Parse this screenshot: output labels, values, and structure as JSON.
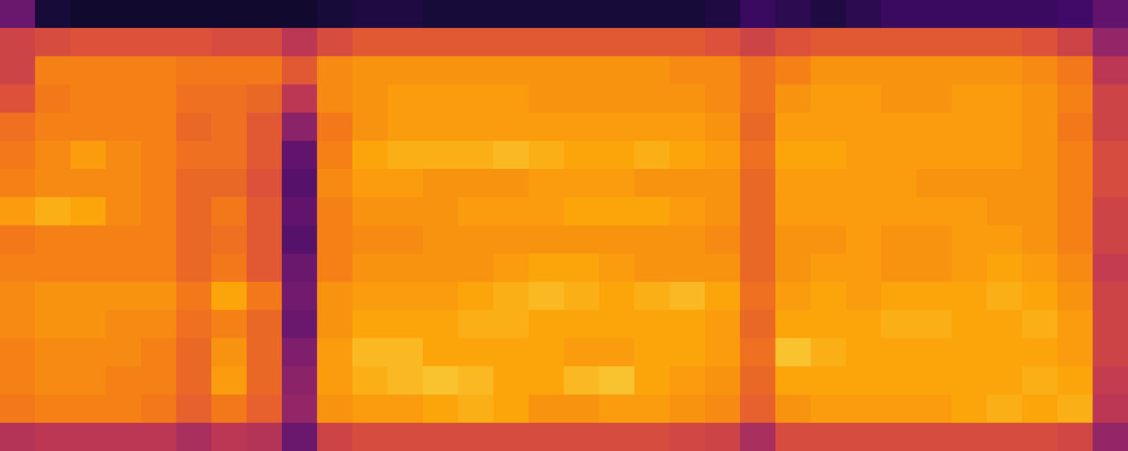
{
  "chart_data": {
    "type": "heatmap",
    "tick_labels": false,
    "xlim": [
      0,
      32
    ],
    "ylim": [
      0,
      16
    ],
    "color_range": [
      0,
      100
    ],
    "cells": [
      [
        30,
        10,
        8,
        8,
        8,
        8,
        8,
        8,
        8,
        10,
        12,
        12,
        10,
        10,
        10,
        10,
        10,
        10,
        10,
        10,
        12,
        18,
        15,
        12,
        15,
        18,
        18,
        18,
        18,
        18,
        20,
        28
      ],
      [
        55,
        58,
        60,
        60,
        60,
        60,
        58,
        58,
        50,
        58,
        62,
        62,
        62,
        62,
        62,
        62,
        62,
        62,
        62,
        62,
        60,
        55,
        60,
        62,
        62,
        62,
        62,
        62,
        62,
        60,
        55,
        40
      ],
      [
        55,
        72,
        72,
        72,
        72,
        70,
        70,
        70,
        62,
        74,
        76,
        76,
        76,
        76,
        76,
        76,
        76,
        76,
        76,
        74,
        74,
        68,
        72,
        76,
        76,
        76,
        76,
        76,
        76,
        74,
        70,
        50
      ],
      [
        60,
        70,
        72,
        72,
        72,
        68,
        68,
        66,
        50,
        74,
        76,
        78,
        78,
        78,
        78,
        76,
        76,
        76,
        76,
        76,
        74,
        68,
        76,
        78,
        78,
        76,
        76,
        78,
        78,
        76,
        72,
        55
      ],
      [
        68,
        72,
        72,
        72,
        72,
        66,
        68,
        62,
        38,
        70,
        76,
        78,
        78,
        78,
        78,
        78,
        78,
        78,
        78,
        78,
        76,
        66,
        78,
        78,
        78,
        78,
        78,
        78,
        78,
        76,
        70,
        55
      ],
      [
        70,
        74,
        78,
        74,
        72,
        68,
        68,
        62,
        28,
        72,
        80,
        82,
        82,
        82,
        84,
        82,
        80,
        80,
        82,
        80,
        78,
        68,
        80,
        80,
        78,
        78,
        78,
        78,
        78,
        76,
        72,
        58
      ],
      [
        72,
        74,
        74,
        74,
        72,
        66,
        66,
        60,
        25,
        74,
        78,
        78,
        76,
        76,
        76,
        78,
        78,
        78,
        76,
        76,
        76,
        66,
        78,
        78,
        78,
        78,
        76,
        76,
        76,
        76,
        72,
        58
      ],
      [
        78,
        82,
        80,
        74,
        72,
        66,
        70,
        62,
        28,
        72,
        76,
        76,
        76,
        78,
        78,
        78,
        80,
        80,
        80,
        78,
        76,
        66,
        78,
        78,
        78,
        78,
        78,
        78,
        76,
        76,
        72,
        55
      ],
      [
        70,
        72,
        72,
        72,
        72,
        66,
        68,
        62,
        25,
        72,
        74,
        74,
        76,
        76,
        76,
        76,
        76,
        76,
        76,
        76,
        74,
        66,
        76,
        76,
        78,
        76,
        76,
        78,
        78,
        76,
        72,
        55
      ],
      [
        72,
        72,
        72,
        72,
        72,
        66,
        70,
        62,
        30,
        72,
        76,
        76,
        76,
        76,
        78,
        80,
        80,
        78,
        76,
        76,
        76,
        66,
        76,
        78,
        78,
        76,
        76,
        78,
        80,
        78,
        74,
        52
      ],
      [
        74,
        76,
        76,
        76,
        76,
        70,
        80,
        70,
        32,
        76,
        78,
        78,
        78,
        80,
        82,
        84,
        82,
        80,
        82,
        84,
        80,
        68,
        78,
        80,
        78,
        80,
        80,
        80,
        82,
        80,
        76,
        55
      ],
      [
        74,
        76,
        76,
        74,
        74,
        68,
        72,
        66,
        30,
        76,
        80,
        80,
        80,
        82,
        82,
        80,
        80,
        80,
        80,
        80,
        78,
        66,
        80,
        80,
        80,
        82,
        82,
        80,
        80,
        82,
        78,
        55
      ],
      [
        72,
        74,
        74,
        74,
        72,
        66,
        76,
        66,
        35,
        78,
        84,
        84,
        80,
        80,
        80,
        80,
        78,
        78,
        80,
        80,
        78,
        68,
        86,
        82,
        80,
        80,
        80,
        80,
        80,
        80,
        78,
        55
      ],
      [
        72,
        74,
        74,
        72,
        72,
        66,
        78,
        66,
        38,
        78,
        82,
        84,
        86,
        84,
        80,
        80,
        84,
        86,
        80,
        78,
        76,
        66,
        80,
        80,
        80,
        80,
        80,
        80,
        80,
        82,
        80,
        52
      ],
      [
        70,
        72,
        72,
        72,
        70,
        64,
        70,
        64,
        40,
        76,
        78,
        78,
        80,
        82,
        80,
        76,
        76,
        78,
        78,
        76,
        74,
        64,
        76,
        78,
        78,
        78,
        78,
        80,
        82,
        80,
        82,
        50
      ],
      [
        48,
        50,
        50,
        50,
        50,
        45,
        50,
        48,
        30,
        55,
        58,
        58,
        58,
        58,
        58,
        58,
        58,
        58,
        58,
        56,
        55,
        45,
        58,
        58,
        58,
        58,
        58,
        58,
        58,
        58,
        56,
        40
      ]
    ]
  }
}
